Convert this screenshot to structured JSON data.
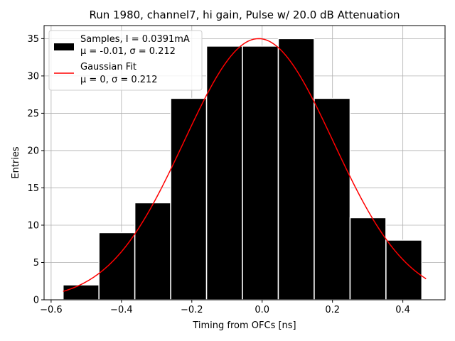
{
  "chart_data": {
    "type": "bar",
    "title": "Run 1980, channel7, hi gain, Pulse w/ 20.0 dB Attenuation",
    "xlabel": "Timing from OFCs [ns]",
    "ylabel": "Entries",
    "xlim": [
      -0.62,
      0.52
    ],
    "ylim": [
      0,
      36.75
    ],
    "xticks": [
      -0.6,
      -0.4,
      -0.2,
      0.0,
      0.2,
      0.4
    ],
    "xtick_labels": [
      "−0.6",
      "−0.4",
      "−0.2",
      "0.0",
      "0.2",
      "0.4"
    ],
    "yticks": [
      0,
      5,
      10,
      15,
      20,
      25,
      30,
      35
    ],
    "ytick_labels": [
      "0",
      "5",
      "10",
      "15",
      "20",
      "25",
      "30",
      "35"
    ],
    "grid": true,
    "legend_position": "top-left",
    "bins": [
      {
        "left": -0.566,
        "right": -0.464,
        "count": 2
      },
      {
        "left": -0.464,
        "right": -0.362,
        "count": 9
      },
      {
        "left": -0.362,
        "right": -0.26,
        "count": 13
      },
      {
        "left": -0.26,
        "right": -0.158,
        "count": 27
      },
      {
        "left": -0.158,
        "right": -0.056,
        "count": 34
      },
      {
        "left": -0.056,
        "right": 0.046,
        "count": 34
      },
      {
        "left": 0.046,
        "right": 0.148,
        "count": 35
      },
      {
        "left": 0.148,
        "right": 0.25,
        "count": 27
      },
      {
        "left": 0.25,
        "right": 0.352,
        "count": 11
      },
      {
        "left": 0.352,
        "right": 0.454,
        "count": 8
      }
    ],
    "series": [
      {
        "name_line1": "Samples, I = 0.0391mA",
        "name_line2": "μ = -0.01, σ = 0.212",
        "kind": "histogram",
        "color": "#000000",
        "edge_color": "#ffffff"
      },
      {
        "name_line1": "Gaussian Fit",
        "name_line2": "μ = 0, σ = 0.212",
        "kind": "line",
        "color": "#ff0000",
        "amplitude": 35,
        "mu": -0.01,
        "sigma": 0.212,
        "x_range": [
          -0.566,
          0.466
        ]
      }
    ]
  }
}
